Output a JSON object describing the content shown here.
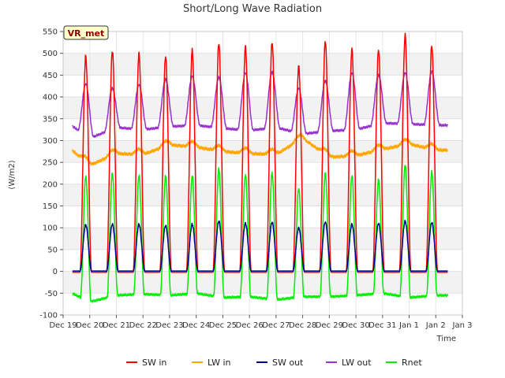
{
  "chart_data": {
    "type": "line",
    "title": "Short/Long Wave Radiation",
    "site_label": "VR_met",
    "xlabel": "Time",
    "ylabel": "(W/m2)",
    "ylim": [
      -100,
      550
    ],
    "yticks": [
      -100,
      -50,
      0,
      50,
      100,
      150,
      200,
      250,
      300,
      350,
      400,
      450,
      500,
      550
    ],
    "xlim": [
      0,
      15
    ],
    "xticks": [
      {
        "v": 0,
        "label": "Dec 19"
      },
      {
        "v": 1,
        "label": "Dec 20"
      },
      {
        "v": 2,
        "label": "Dec 21"
      },
      {
        "v": 3,
        "label": "Dec 22"
      },
      {
        "v": 4,
        "label": "Dec 23"
      },
      {
        "v": 5,
        "label": "Dec 24"
      },
      {
        "v": 6,
        "label": "Dec 25"
      },
      {
        "v": 7,
        "label": "Dec 26"
      },
      {
        "v": 8,
        "label": "Dec 27"
      },
      {
        "v": 9,
        "label": "Dec 28"
      },
      {
        "v": 10,
        "label": "Dec 29"
      },
      {
        "v": 11,
        "label": "Dec 30"
      },
      {
        "v": 12,
        "label": "Dec 31"
      },
      {
        "v": 13,
        "label": "Jan 1"
      },
      {
        "v": 14,
        "label": "Jan 2"
      },
      {
        "v": 15,
        "label": "Jan 3"
      }
    ],
    "x_unit": "days since Dec 19",
    "data_start": 0.35,
    "data_end": 14.45,
    "day_centers": [
      0.85,
      1.85,
      2.85,
      3.85,
      4.85,
      5.85,
      6.85,
      7.85,
      8.85,
      9.85,
      10.85,
      11.85,
      12.85,
      13.85
    ],
    "series": [
      {
        "name": "SW in",
        "color": "#ff0000",
        "baseline": -2,
        "peaks": [
          495,
          508,
          500,
          495,
          508,
          525,
          517,
          527,
          472,
          530,
          510,
          510,
          543,
          520
        ],
        "width": 0.22
      },
      {
        "name": "LW in",
        "color": "#ffa500",
        "daily_mean": [
          295,
          243,
          270,
          268,
          290,
          285,
          275,
          270,
          268,
          305,
          262,
          265,
          280,
          292,
          278
        ],
        "diurnal_amp": 12
      },
      {
        "name": "SW out",
        "color": "#00008b",
        "baseline": 0,
        "peaks": [
          107,
          108,
          108,
          105,
          108,
          115,
          110,
          113,
          100,
          113,
          108,
          110,
          115,
          112
        ],
        "width": 0.22
      },
      {
        "name": "LW out",
        "color": "#9932cc",
        "night": [
          348,
          305,
          330,
          325,
          332,
          335,
          328,
          323,
          330,
          315,
          322,
          325,
          340,
          338,
          335
        ],
        "peaks": [
          430,
          420,
          428,
          440,
          448,
          445,
          455,
          457,
          420,
          437,
          455,
          450,
          455,
          458
        ]
      },
      {
        "name": "Rnet",
        "color": "#00ee00",
        "night": [
          -40,
          -70,
          -55,
          -52,
          -55,
          -50,
          -60,
          -58,
          -65,
          -58,
          -58,
          -55,
          -50,
          -60,
          -55
        ],
        "peaks": [
          218,
          225,
          220,
          218,
          220,
          235,
          222,
          225,
          190,
          225,
          220,
          210,
          245,
          228
        ]
      }
    ],
    "grid": true,
    "legend_position": "bottom"
  }
}
